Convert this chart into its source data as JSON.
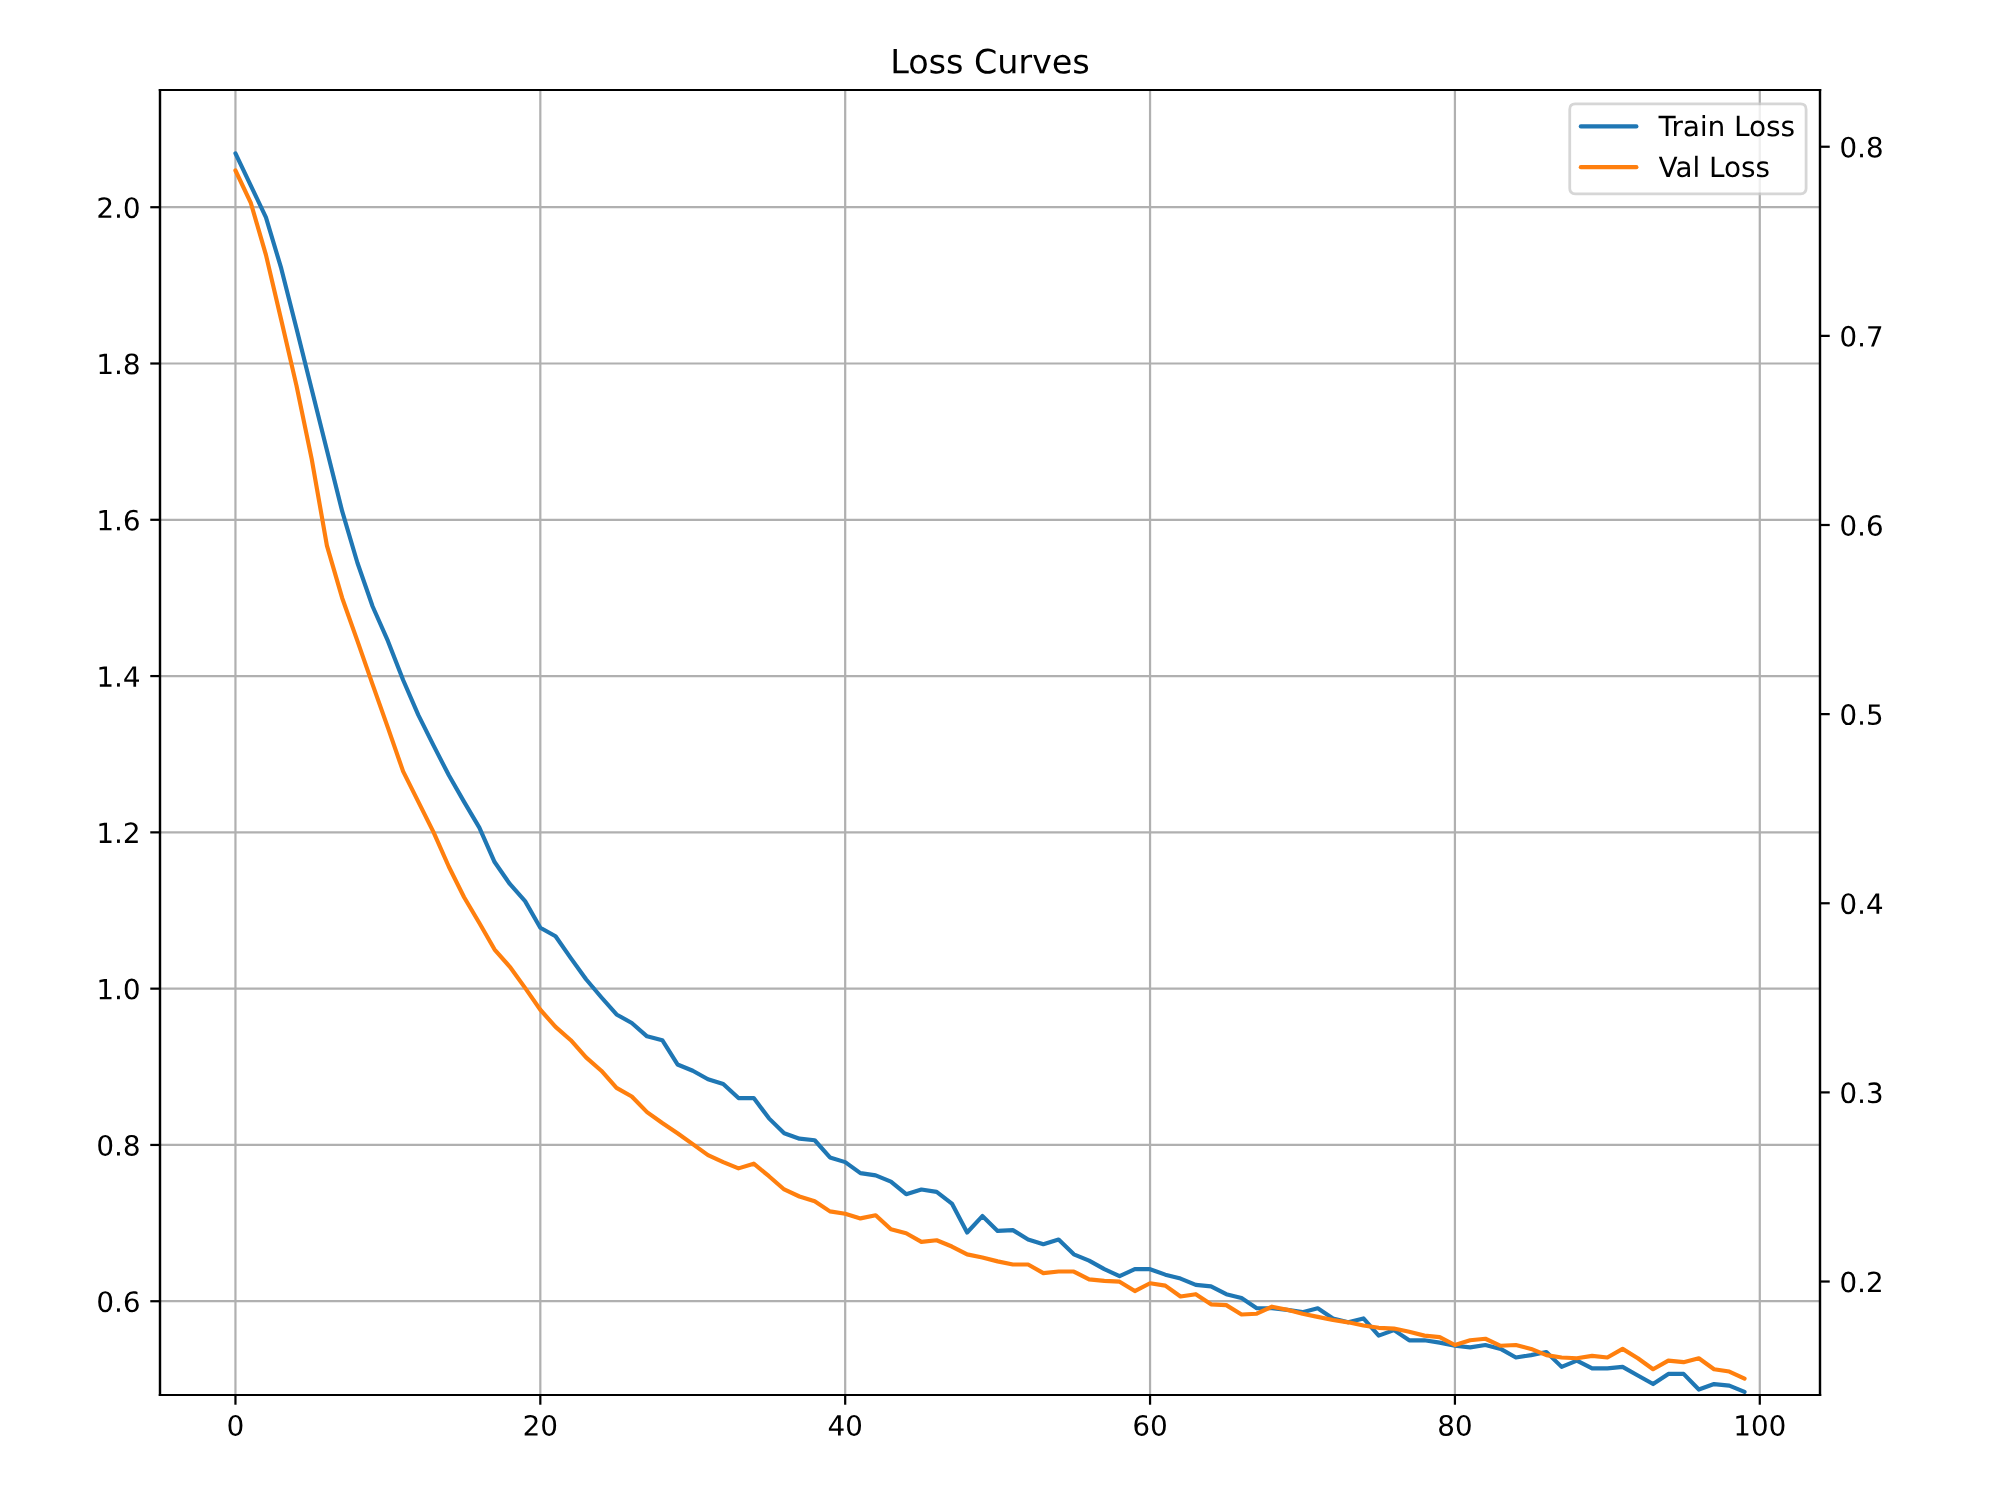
{
  "chart_data": {
    "type": "line",
    "title": "Loss Curves",
    "x": [
      0,
      1,
      2,
      3,
      4,
      5,
      6,
      7,
      8,
      9,
      10,
      11,
      12,
      13,
      14,
      15,
      16,
      17,
      18,
      19,
      20,
      21,
      22,
      23,
      24,
      25,
      26,
      27,
      28,
      29,
      30,
      31,
      32,
      33,
      34,
      35,
      36,
      37,
      38,
      39,
      40,
      41,
      42,
      43,
      44,
      45,
      46,
      47,
      48,
      49,
      50,
      51,
      52,
      53,
      54,
      55,
      56,
      57,
      58,
      59,
      60,
      61,
      62,
      63,
      64,
      65,
      66,
      67,
      68,
      69,
      70,
      71,
      72,
      73,
      74,
      75,
      76,
      77,
      78,
      79,
      80,
      81,
      82,
      83,
      84,
      85,
      86,
      87,
      88,
      89,
      90,
      91,
      92,
      93,
      94,
      95,
      96,
      97,
      98,
      99
    ],
    "series": [
      {
        "name": "Train Loss",
        "color": "#1f77b4",
        "values": [
          2.069,
          2.028,
          1.987,
          1.922,
          1.845,
          1.767,
          1.689,
          1.611,
          1.545,
          1.489,
          1.445,
          1.395,
          1.35,
          1.311,
          1.273,
          1.239,
          1.206,
          1.162,
          1.134,
          1.112,
          1.078,
          1.067,
          1.039,
          1.012,
          0.989,
          0.967,
          0.956,
          0.939,
          0.934,
          0.903,
          0.895,
          0.884,
          0.878,
          0.86,
          0.86,
          0.834,
          0.815,
          0.808,
          0.806,
          0.784,
          0.778,
          0.764,
          0.761,
          0.753,
          0.737,
          0.743,
          0.74,
          0.725,
          0.688,
          0.709,
          0.69,
          0.691,
          0.679,
          0.673,
          0.679,
          0.66,
          0.652,
          0.641,
          0.632,
          0.641,
          0.641,
          0.634,
          0.629,
          0.621,
          0.619,
          0.609,
          0.604,
          0.591,
          0.591,
          0.589,
          0.586,
          0.591,
          0.578,
          0.573,
          0.578,
          0.556,
          0.563,
          0.55,
          0.55,
          0.547,
          0.543,
          0.541,
          0.544,
          0.539,
          0.528,
          0.531,
          0.535,
          0.516,
          0.524,
          0.514,
          0.514,
          0.516,
          0.505,
          0.494,
          0.507,
          0.507,
          0.487,
          0.494,
          0.492,
          0.484
        ]
      },
      {
        "name": "Val Loss",
        "color": "#ff7f0e",
        "values": [
          2.047,
          2.006,
          1.939,
          1.856,
          1.772,
          1.678,
          1.567,
          1.5,
          1.445,
          1.389,
          1.334,
          1.278,
          1.239,
          1.2,
          1.156,
          1.117,
          1.084,
          1.05,
          1.028,
          1.001,
          0.973,
          0.951,
          0.934,
          0.912,
          0.895,
          0.873,
          0.862,
          0.842,
          0.828,
          0.815,
          0.801,
          0.787,
          0.778,
          0.77,
          0.776,
          0.76,
          0.743,
          0.734,
          0.728,
          0.715,
          0.712,
          0.706,
          0.71,
          0.692,
          0.687,
          0.676,
          0.678,
          0.67,
          0.66,
          0.656,
          0.651,
          0.647,
          0.647,
          0.636,
          0.638,
          0.638,
          0.628,
          0.626,
          0.625,
          0.613,
          0.623,
          0.62,
          0.606,
          0.609,
          0.596,
          0.595,
          0.583,
          0.584,
          0.593,
          0.589,
          0.584,
          0.58,
          0.576,
          0.573,
          0.569,
          0.566,
          0.565,
          0.561,
          0.556,
          0.554,
          0.544,
          0.55,
          0.552,
          0.543,
          0.544,
          0.539,
          0.531,
          0.528,
          0.527,
          0.53,
          0.528,
          0.539,
          0.527,
          0.513,
          0.524,
          0.522,
          0.527,
          0.513,
          0.51,
          0.501
        ]
      }
    ],
    "xlim": [
      -4.95,
      103.95
    ],
    "xticks": [
      0,
      20,
      40,
      60,
      80,
      100
    ],
    "ylim": [
      0.48,
      2.15
    ],
    "yticks": [
      0.6,
      0.8,
      {
        "value": 1.0,
        "label": "1.0"
      },
      1.2,
      1.4,
      1.6,
      1.8,
      {
        "value": 2.0,
        "label": "2.0"
      }
    ],
    "y2lim": [
      0.14,
      0.83
    ],
    "y2ticks": [
      0.2,
      0.3,
      0.4,
      0.5,
      0.6,
      0.7,
      0.8
    ],
    "grid": true,
    "legend": "top right"
  }
}
